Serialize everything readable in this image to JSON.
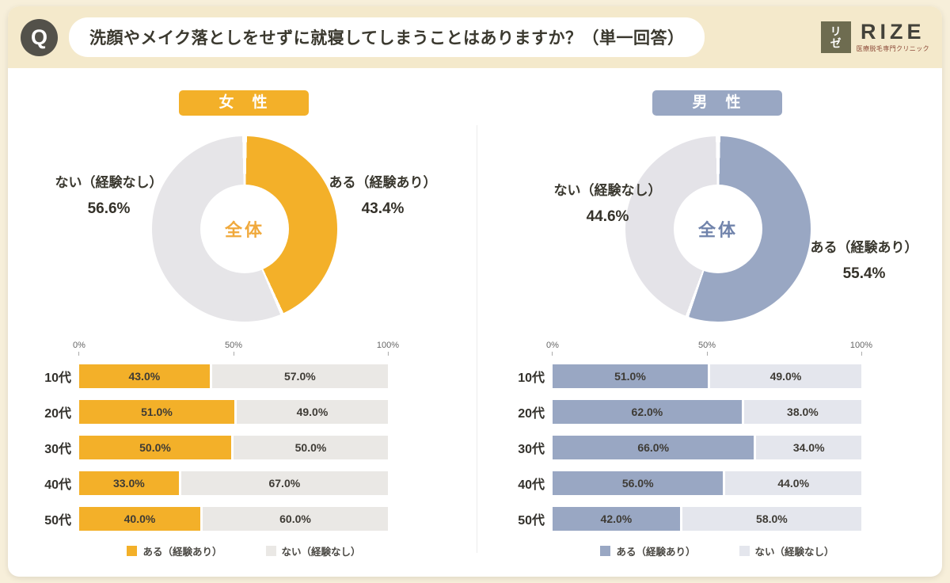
{
  "header": {
    "q": "Q",
    "question": "洗顔やメイク落としをせずに就寝してしまうことはありますか？（単一回答）",
    "logo_mark": "リゼ",
    "logo_name": "RIZE",
    "logo_subtext": "医療脱毛専門クリニック"
  },
  "chart_data": [
    {
      "type": "pie",
      "subtype": "donut",
      "group": "女　性",
      "accent": "#F3B029",
      "rest": "#E6E5E8",
      "center_label": "全体",
      "center_color": "#F0A93C",
      "segments": [
        {
          "label": "ある（経験あり）",
          "value": 43.4
        },
        {
          "label": "ない（経験なし）",
          "value": 56.6
        }
      ]
    },
    {
      "type": "bar",
      "subtype": "stacked-horizontal",
      "group": "女　性",
      "categories": [
        "10代",
        "20代",
        "30代",
        "40代",
        "50代"
      ],
      "series": [
        {
          "name": "ある（経験あり）",
          "color": "#F3B029",
          "values": [
            43.0,
            51.0,
            50.0,
            33.0,
            40.0
          ]
        },
        {
          "name": "ない（経験なし）",
          "color": "#EAE8E5",
          "values": [
            57.0,
            49.0,
            50.0,
            67.0,
            60.0
          ]
        }
      ],
      "x_ticks": [
        "0%",
        "50%",
        "100%"
      ],
      "xlim": [
        0,
        100
      ]
    },
    {
      "type": "pie",
      "subtype": "donut",
      "group": "男　性",
      "accent": "#99A7C3",
      "rest": "#E4E3E8",
      "center_label": "全体",
      "center_color": "#7083AB",
      "segments": [
        {
          "label": "ある（経験あり）",
          "value": 55.4
        },
        {
          "label": "ない（経験なし）",
          "value": 44.6
        }
      ]
    },
    {
      "type": "bar",
      "subtype": "stacked-horizontal",
      "group": "男　性",
      "categories": [
        "10代",
        "20代",
        "30代",
        "40代",
        "50代"
      ],
      "series": [
        {
          "name": "ある（経験あり）",
          "color": "#99A7C3",
          "values": [
            51.0,
            62.0,
            66.0,
            56.0,
            42.0
          ]
        },
        {
          "name": "ない（経験なし）",
          "color": "#E4E6ED",
          "values": [
            49.0,
            38.0,
            34.0,
            44.0,
            58.0
          ]
        }
      ],
      "x_ticks": [
        "0%",
        "50%",
        "100%"
      ],
      "xlim": [
        0,
        100
      ]
    }
  ]
}
